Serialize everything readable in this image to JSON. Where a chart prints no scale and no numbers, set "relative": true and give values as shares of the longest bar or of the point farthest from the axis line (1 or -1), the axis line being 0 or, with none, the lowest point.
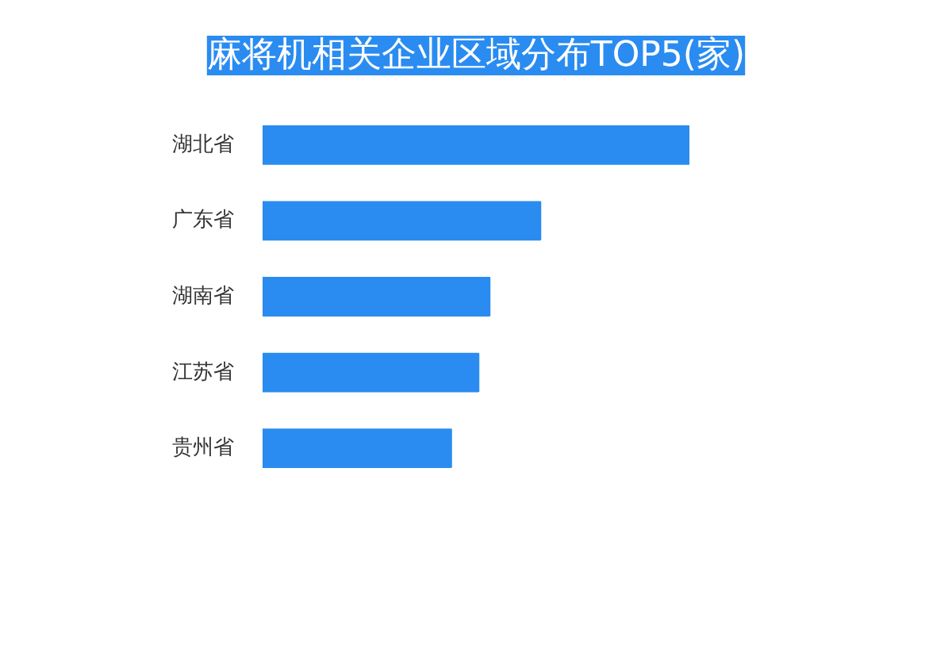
{
  "chart_data": {
    "type": "bar",
    "orientation": "horizontal",
    "relative": true,
    "title": "麻将机相关企业区域分布TOP5(家)",
    "categories": [
      "湖北省",
      "广东省",
      "湖南省",
      "江苏省",
      "贵州省"
    ],
    "values": [
      1,
      0.651,
      0.532,
      0.506,
      0.442
    ],
    "color": "#2a8cf0"
  }
}
